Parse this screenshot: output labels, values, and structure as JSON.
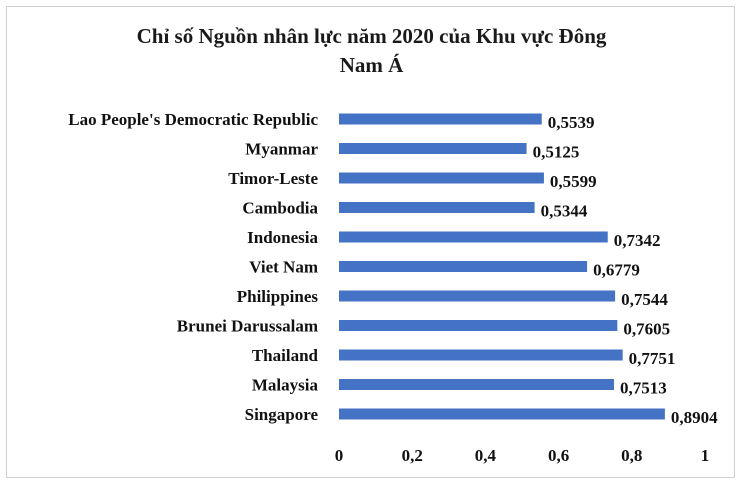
{
  "chart_data": {
    "type": "bar",
    "orientation": "horizontal",
    "title": "Chỉ số Nguồn nhân lực năm 2020 của Khu vực Đông Nam Á",
    "title_lines": [
      "Chỉ số Nguồn nhân lực năm 2020 của Khu vực Đông",
      "Nam Á"
    ],
    "categories": [
      "Lao People's Democratic Republic",
      "Myanmar",
      "Timor-Leste",
      "Cambodia",
      "Indonesia",
      "Viet Nam",
      "Philippines",
      "Brunei Darussalam",
      "Thailand",
      "Malaysia",
      "Singapore"
    ],
    "values": [
      0.5539,
      0.5125,
      0.5599,
      0.5344,
      0.7342,
      0.6779,
      0.7544,
      0.7605,
      0.7751,
      0.7513,
      0.8904
    ],
    "value_labels": [
      "0,5539",
      "0,5125",
      "0,5599",
      "0,5344",
      "0,7342",
      "0,6779",
      "0,7544",
      "0,7605",
      "0,7751",
      "0,7513",
      "0,8904"
    ],
    "xlim": [
      0,
      1
    ],
    "xticks": [
      0,
      0.2,
      0.4,
      0.6,
      0.8,
      1
    ],
    "xtick_labels": [
      "0",
      "0,2",
      "0,4",
      "0,6",
      "0,8",
      "1"
    ],
    "xlabel": "",
    "ylabel": "",
    "grid": false,
    "legend": "none",
    "bar_color": "#4472C4"
  }
}
